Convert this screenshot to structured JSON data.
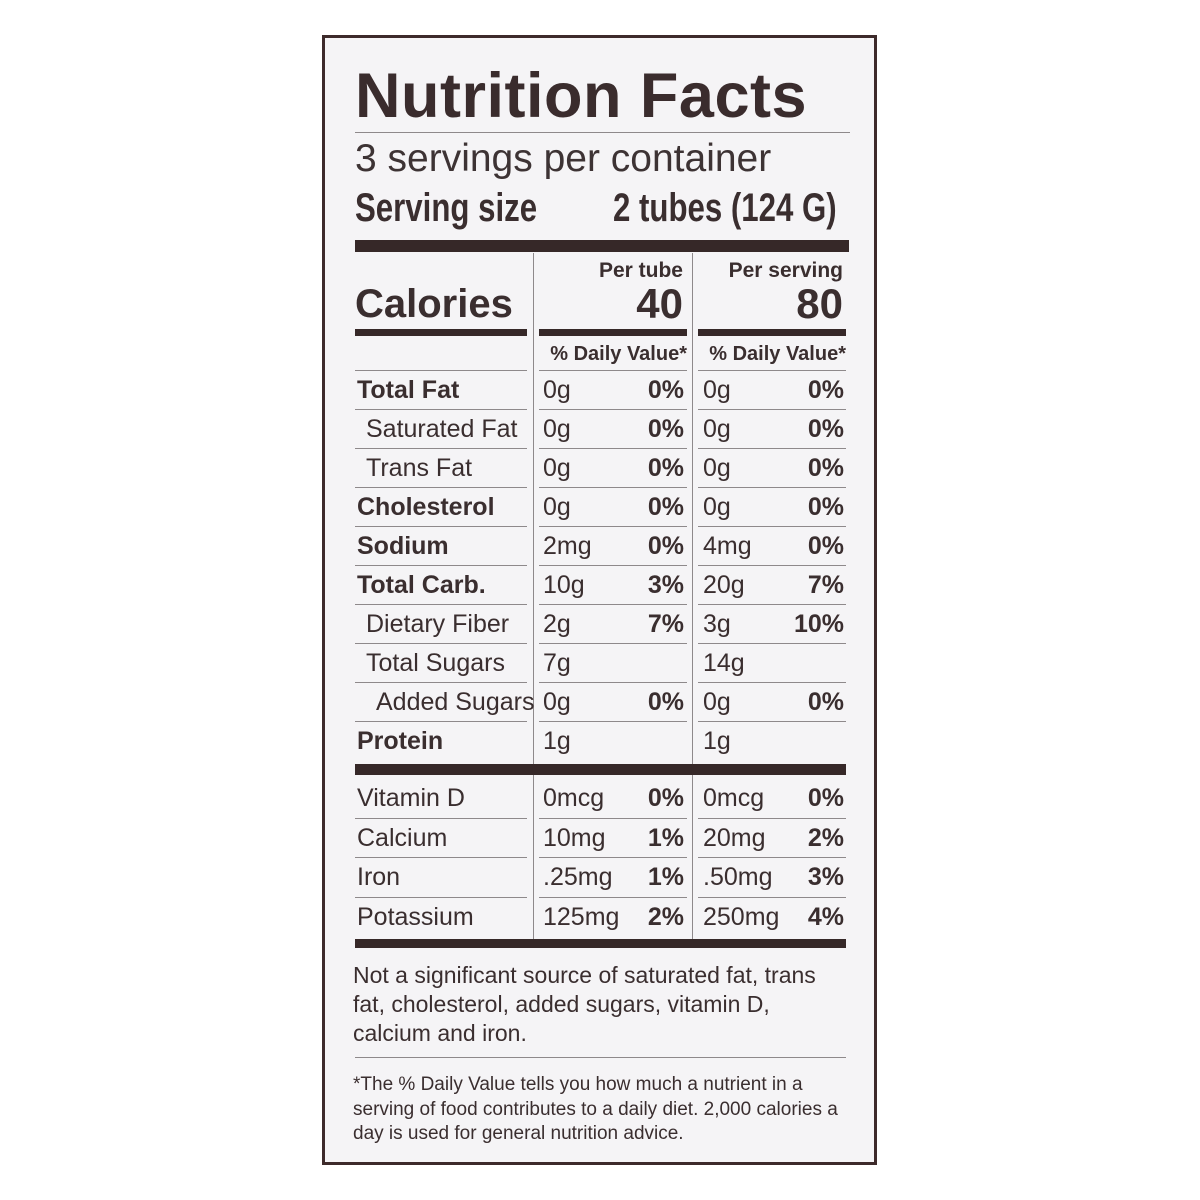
{
  "label": {
    "title": "Nutrition Facts",
    "servings_per_container": "3 servings per container",
    "serving_size_label": "Serving size",
    "serving_size_value": "2 tubes (124 G)",
    "calories_label": "Calories",
    "columns": [
      {
        "header": "Per tube",
        "calories": "40",
        "dv_header": "% Daily Value*"
      },
      {
        "header": "Per serving",
        "calories": "80",
        "dv_header": "% Daily Value*"
      }
    ],
    "nutrients": [
      {
        "name": "Total Fat",
        "bold": true,
        "indent": 0,
        "v1": "0g",
        "p1": "0%",
        "v2": "0g",
        "p2": "0%"
      },
      {
        "name": "Saturated Fat",
        "bold": false,
        "indent": 1,
        "v1": "0g",
        "p1": "0%",
        "v2": "0g",
        "p2": "0%"
      },
      {
        "name": "Trans Fat",
        "bold": false,
        "indent": 1,
        "v1": "0g",
        "p1": "0%",
        "v2": "0g",
        "p2": "0%"
      },
      {
        "name": "Cholesterol",
        "bold": true,
        "indent": 0,
        "v1": "0g",
        "p1": "0%",
        "v2": "0g",
        "p2": "0%"
      },
      {
        "name": "Sodium",
        "bold": true,
        "indent": 0,
        "v1": "2mg",
        "p1": "0%",
        "v2": "4mg",
        "p2": "0%"
      },
      {
        "name": "Total Carb.",
        "bold": true,
        "indent": 0,
        "v1": "10g",
        "p1": "3%",
        "v2": "20g",
        "p2": "7%"
      },
      {
        "name": "Dietary Fiber",
        "bold": false,
        "indent": 1,
        "v1": "2g",
        "p1": "7%",
        "v2": "3g",
        "p2": "10%"
      },
      {
        "name": "Total Sugars",
        "bold": false,
        "indent": 1,
        "v1": "7g",
        "p1": "",
        "v2": "14g",
        "p2": ""
      },
      {
        "name": "Added Sugars",
        "bold": false,
        "indent": 2,
        "v1": "0g",
        "p1": "0%",
        "v2": "0g",
        "p2": "0%"
      },
      {
        "name": "Protein",
        "bold": true,
        "indent": 0,
        "v1": "1g",
        "p1": "",
        "v2": "1g",
        "p2": ""
      }
    ],
    "vitamins": [
      {
        "name": "Vitamin D",
        "v1": "0mcg",
        "p1": "0%",
        "v2": "0mcg",
        "p2": "0%"
      },
      {
        "name": "Calcium",
        "v1": "10mg",
        "p1": "1%",
        "v2": "20mg",
        "p2": "2%"
      },
      {
        "name": "Iron",
        "v1": ".25mg",
        "p1": "1%",
        "v2": ".50mg",
        "p2": "3%"
      },
      {
        "name": "Potassium",
        "v1": "125mg",
        "p1": "2%",
        "v2": "250mg",
        "p2": "4%"
      }
    ],
    "not_significant_note": "Not a significant source of saturated fat, trans fat, cholesterol, added sugars, vitamin D, calcium and iron.",
    "footnote": "*The % Daily Value tells you how much a nutrient in a serving of food contributes to a daily diet. 2,000 calories a day is used for general nutrition advice."
  }
}
